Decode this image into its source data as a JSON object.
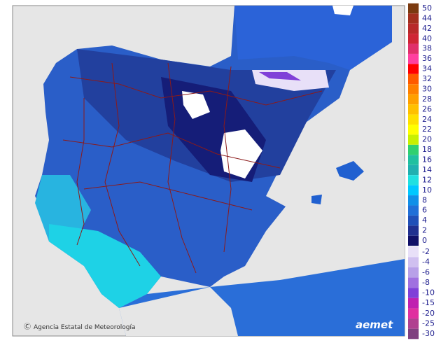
{
  "map": {
    "credit": "Agencia Estatal de Meteorología",
    "logo": "aemet",
    "legend": [
      {
        "label": "50",
        "color": "#7b3a10"
      },
      {
        "label": "44",
        "color": "#a3301f"
      },
      {
        "label": "42",
        "color": "#b82a2a"
      },
      {
        "label": "40",
        "color": "#cf2635"
      },
      {
        "label": "38",
        "color": "#e0306a"
      },
      {
        "label": "36",
        "color": "#ff40a0"
      },
      {
        "label": "34",
        "color": "#ff0000"
      },
      {
        "label": "32",
        "color": "#ff5a00"
      },
      {
        "label": "30",
        "color": "#ff8000"
      },
      {
        "label": "28",
        "color": "#ffa000"
      },
      {
        "label": "26",
        "color": "#ffc000"
      },
      {
        "label": "24",
        "color": "#ffe000"
      },
      {
        "label": "22",
        "color": "#ffff00"
      },
      {
        "label": "20",
        "color": "#c8f000"
      },
      {
        "label": "18",
        "color": "#30d070"
      },
      {
        "label": "16",
        "color": "#20c0a0"
      },
      {
        "label": "14",
        "color": "#20b0b0"
      },
      {
        "label": "12",
        "color": "#20e0e0"
      },
      {
        "label": "10",
        "color": "#00c8ff"
      },
      {
        "label": "8",
        "color": "#1090e8"
      },
      {
        "label": "6",
        "color": "#2070d8"
      },
      {
        "label": "4",
        "color": "#2050b8"
      },
      {
        "label": "2",
        "color": "#203090"
      },
      {
        "label": "0",
        "color": "#101068"
      },
      {
        "label": "-2",
        "color": "#e8e0f8"
      },
      {
        "label": "-4",
        "color": "#d0c0f0"
      },
      {
        "label": "-6",
        "color": "#b8a0e8"
      },
      {
        "label": "-8",
        "color": "#a070e0"
      },
      {
        "label": "-10",
        "color": "#8040d8"
      },
      {
        "label": "-15",
        "color": "#c020b0"
      },
      {
        "label": "-20",
        "color": "#e030a0"
      },
      {
        "label": "-25",
        "color": "#b04090"
      },
      {
        "label": "-30",
        "color": "#804080"
      }
    ]
  }
}
